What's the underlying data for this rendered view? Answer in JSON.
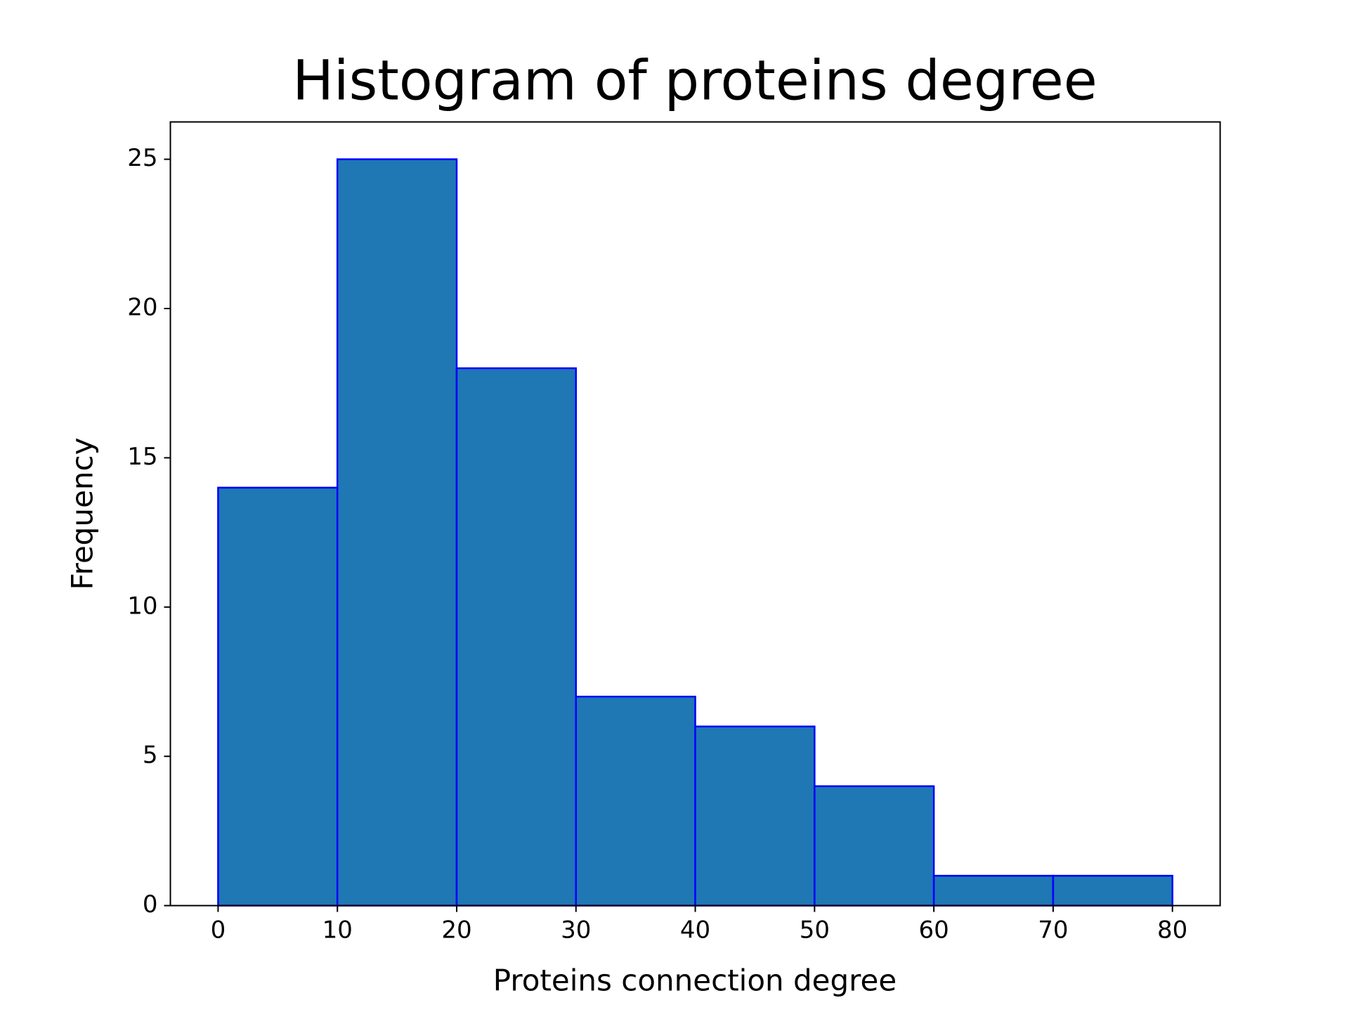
{
  "chart_data": {
    "type": "histogram",
    "title": "Histogram of proteins degree",
    "x_label": "Proteins connection degree",
    "y_label": "Frequency",
    "bins": [
      0,
      10,
      20,
      30,
      40,
      50,
      60,
      70,
      80
    ],
    "values": [
      14,
      25,
      18,
      7,
      6,
      4,
      1,
      1
    ],
    "color": "#1f77b4",
    "edgecolor": "#0000ff",
    "xlim": [
      -4,
      84
    ],
    "ylim": [
      0,
      26.25
    ],
    "xticks": [
      0,
      10,
      20,
      30,
      40,
      50,
      60,
      70,
      80
    ],
    "yticks": [
      0,
      5,
      10,
      15,
      20,
      25
    ],
    "grid": false
  }
}
